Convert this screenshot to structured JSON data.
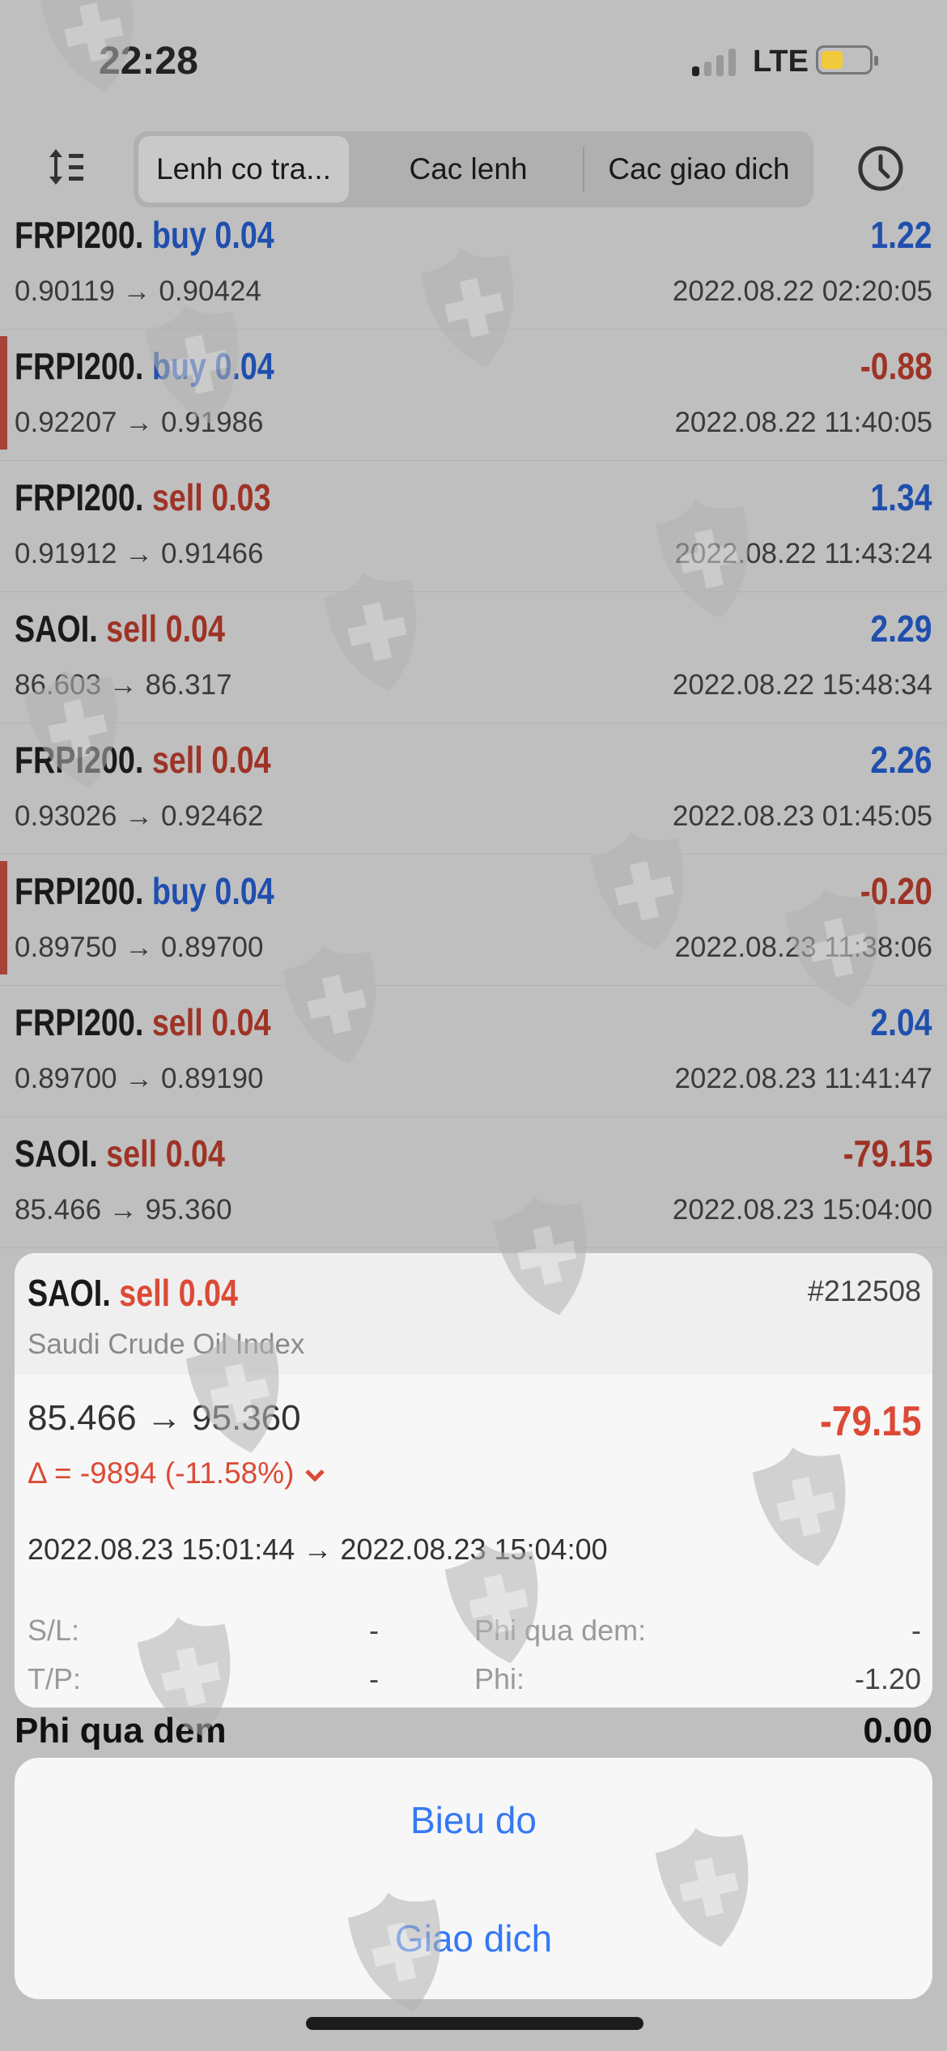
{
  "status_bar": {
    "time": "22:28",
    "network": "LTE",
    "signal_bars": 1,
    "battery_level": 0.35
  },
  "header": {
    "tabs": [
      {
        "label": "Lenh co tra...",
        "active": true
      },
      {
        "label": "Cac lenh",
        "active": false
      },
      {
        "label": "Cac giao dich",
        "active": false
      }
    ],
    "sort_icon": "sort-lines-icon",
    "history_icon": "clock-icon"
  },
  "colors": {
    "buy": "#1f4fae",
    "sell": "#9e3326",
    "loss_marker": "#a6443a",
    "action": "#3478f6",
    "card_loss": "#dc4a36"
  },
  "trades": [
    {
      "symbol": "FRPI200.",
      "side": "buy",
      "volume": "0.04",
      "prices": "0.90119 → 0.90424",
      "profit": "1.22",
      "profit_sign": "pos",
      "date": "2022.08.22 02:20:05",
      "marker": false
    },
    {
      "symbol": "FRPI200.",
      "side": "buy",
      "volume": "0.04",
      "prices": "0.92207 → 0.91986",
      "profit": "-0.88",
      "profit_sign": "neg",
      "date": "2022.08.22 11:40:05",
      "marker": true
    },
    {
      "symbol": "FRPI200.",
      "side": "sell",
      "volume": "0.03",
      "prices": "0.91912 → 0.91466",
      "profit": "1.34",
      "profit_sign": "pos",
      "date": "2022.08.22 11:43:24",
      "marker": false
    },
    {
      "symbol": "SAOI.",
      "side": "sell",
      "volume": "0.04",
      "prices": "86.603 → 86.317",
      "profit": "2.29",
      "profit_sign": "pos",
      "date": "2022.08.22 15:48:34",
      "marker": false
    },
    {
      "symbol": "FRPI200.",
      "side": "sell",
      "volume": "0.04",
      "prices": "0.93026 → 0.92462",
      "profit": "2.26",
      "profit_sign": "pos",
      "date": "2022.08.23 01:45:05",
      "marker": false
    },
    {
      "symbol": "FRPI200.",
      "side": "buy",
      "volume": "0.04",
      "prices": "0.89750 → 0.89700",
      "profit": "-0.20",
      "profit_sign": "neg",
      "date": "2022.08.23 11:38:06",
      "marker": true
    },
    {
      "symbol": "FRPI200.",
      "side": "sell",
      "volume": "0.04",
      "prices": "0.89700 → 0.89190",
      "profit": "2.04",
      "profit_sign": "pos",
      "date": "2022.08.23 11:41:47",
      "marker": false
    },
    {
      "symbol": "SAOI.",
      "side": "sell",
      "volume": "0.04",
      "prices": "85.466 → 95.360",
      "profit": "-79.15",
      "profit_sign": "neg",
      "date": "2022.08.23 15:04:00",
      "marker": false
    }
  ],
  "behind_row": {
    "label": "Phi qua dem",
    "value": "0.00"
  },
  "detail": {
    "symbol": "SAOI.",
    "side": "sell",
    "volume": "0.04",
    "ticket": "#212508",
    "name": "Saudi Crude Oil Index",
    "prices": "85.466 → 95.360",
    "profit": "-79.15",
    "delta": "Δ = -9894 (-11.58%)",
    "times": "2022.08.23 15:01:44 → 2022.08.23 15:04:00",
    "sl_label": "S/L:",
    "sl_value": "-",
    "tp_label": "T/P:",
    "tp_value": "-",
    "swap_label": "Phi qua dem:",
    "swap_value": "-",
    "fee_label": "Phi:",
    "fee_value": "-1.20"
  },
  "actions": {
    "chart": "Bieu do",
    "trade": "Giao dich"
  }
}
